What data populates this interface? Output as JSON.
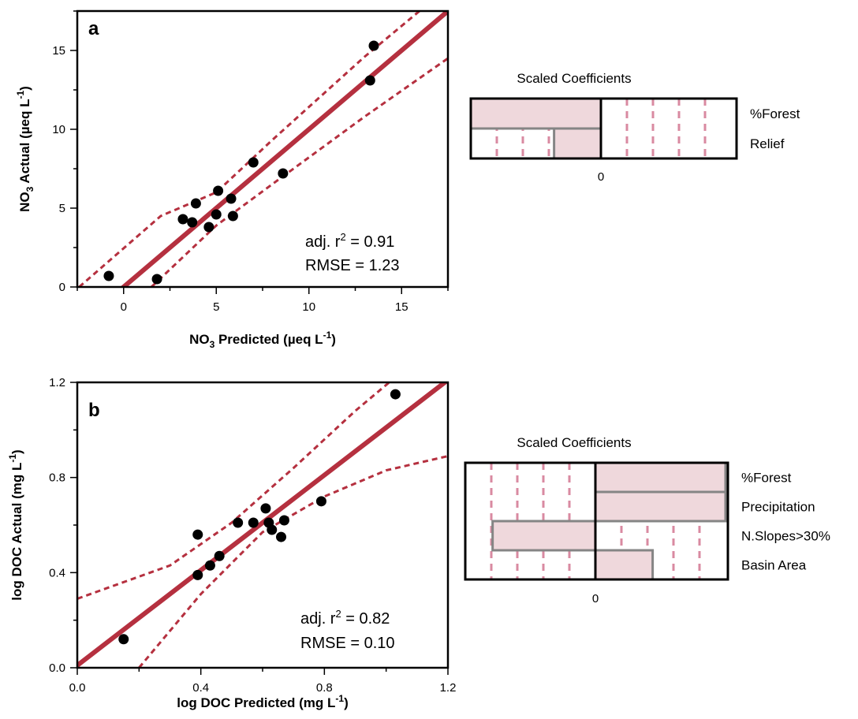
{
  "colors": {
    "fit_line": "#b5303f",
    "ci_line": "#b5303f",
    "points": "#000000",
    "bar_fill": "#efd8dc",
    "bar_stroke": "#858585",
    "grid_dash": "#d98aa1"
  },
  "chart_data": [
    {
      "id": "a",
      "type": "scatter",
      "panel_label": "a",
      "xlabel": "NO3 Predicted (µeq L-1)",
      "ylabel": "NO3 Actual (µeq L-1)",
      "xlim": [
        -2.5,
        17.5
      ],
      "ylim": [
        0,
        17.5
      ],
      "xticks": [
        0,
        5,
        10,
        15
      ],
      "yticks": [
        0,
        5,
        10,
        15
      ],
      "points": [
        [
          -0.8,
          0.7
        ],
        [
          1.8,
          0.5
        ],
        [
          3.2,
          4.3
        ],
        [
          3.7,
          4.1
        ],
        [
          3.9,
          5.3
        ],
        [
          4.6,
          3.8
        ],
        [
          5.0,
          4.6
        ],
        [
          5.1,
          6.1
        ],
        [
          5.8,
          5.6
        ],
        [
          5.9,
          4.5
        ],
        [
          7.0,
          7.9
        ],
        [
          8.6,
          7.2
        ],
        [
          13.3,
          13.1
        ],
        [
          13.5,
          15.3
        ]
      ],
      "fit_line": {
        "slope": 1.0,
        "intercept": 0.0
      },
      "ci_upper": [
        [
          -2.4,
          0.0
        ],
        [
          2.0,
          4.5
        ],
        [
          5.0,
          6.0
        ],
        [
          8.0,
          9.3
        ],
        [
          13.0,
          14.6
        ],
        [
          17.5,
          19.0
        ]
      ],
      "ci_lower": [
        [
          1.5,
          0.0
        ],
        [
          5.0,
          3.9
        ],
        [
          8.0,
          6.5
        ],
        [
          13.0,
          10.8
        ],
        [
          17.5,
          14.5
        ]
      ],
      "annotation": {
        "r2_prefix": "adj. r",
        "r2_value": " = 0.91",
        "rmse": "RMSE = 1.23"
      }
    },
    {
      "id": "b",
      "type": "scatter",
      "panel_label": "b",
      "xlabel": "log DOC Predicted (mg L-1)",
      "ylabel": "log DOC Actual (mg L-1)",
      "xlim": [
        0.0,
        1.2
      ],
      "ylim": [
        0.0,
        1.2
      ],
      "xticks": [
        0.0,
        0.4,
        0.8,
        1.2
      ],
      "yticks": [
        0.0,
        0.4,
        0.8,
        1.2
      ],
      "xticklabels": [
        "0.0",
        "0.4",
        "0.8",
        "1.2"
      ],
      "yticklabels": [
        "0.0",
        "0.4",
        "0.8",
        "1.2"
      ],
      "points": [
        [
          0.15,
          0.12
        ],
        [
          0.39,
          0.56
        ],
        [
          0.39,
          0.39
        ],
        [
          0.43,
          0.43
        ],
        [
          0.46,
          0.47
        ],
        [
          0.52,
          0.61
        ],
        [
          0.57,
          0.61
        ],
        [
          0.61,
          0.67
        ],
        [
          0.62,
          0.61
        ],
        [
          0.63,
          0.58
        ],
        [
          0.66,
          0.55
        ],
        [
          0.67,
          0.62
        ],
        [
          0.79,
          0.7
        ],
        [
          1.03,
          1.15
        ]
      ],
      "fit_line": {
        "slope": 1.0,
        "intercept": 0.01
      },
      "ci_upper": [
        [
          0.0,
          0.29
        ],
        [
          0.3,
          0.43
        ],
        [
          0.5,
          0.61
        ],
        [
          0.7,
          0.84
        ],
        [
          0.9,
          1.08
        ],
        [
          1.01,
          1.2
        ]
      ],
      "ci_lower": [
        [
          0.2,
          0.0
        ],
        [
          0.4,
          0.31
        ],
        [
          0.6,
          0.57
        ],
        [
          0.8,
          0.72
        ],
        [
          1.0,
          0.83
        ],
        [
          1.2,
          0.89
        ]
      ],
      "annotation": {
        "r2_prefix": "adj. r",
        "r2_value": " = 0.82",
        "rmse": "RMSE = 0.10"
      }
    }
  ],
  "coefficients": [
    {
      "title": "Scaled Coefficients",
      "zero_label": "0",
      "xlim": [
        -1.0,
        1.0
      ],
      "bars": [
        {
          "label": "%Forest",
          "value": -1.0
        },
        {
          "label": "Relief",
          "value": -0.36
        }
      ]
    },
    {
      "title": "Scaled Coefficients",
      "zero_label": "0",
      "xlim": [
        -1.0,
        1.0
      ],
      "bars": [
        {
          "label": "%Forest",
          "value": 1.0
        },
        {
          "label": "Precipitation",
          "value": 1.0
        },
        {
          "label": "N.Slopes>30%",
          "value": -0.79
        },
        {
          "label": "Basin Area",
          "value": 0.44
        }
      ]
    }
  ]
}
